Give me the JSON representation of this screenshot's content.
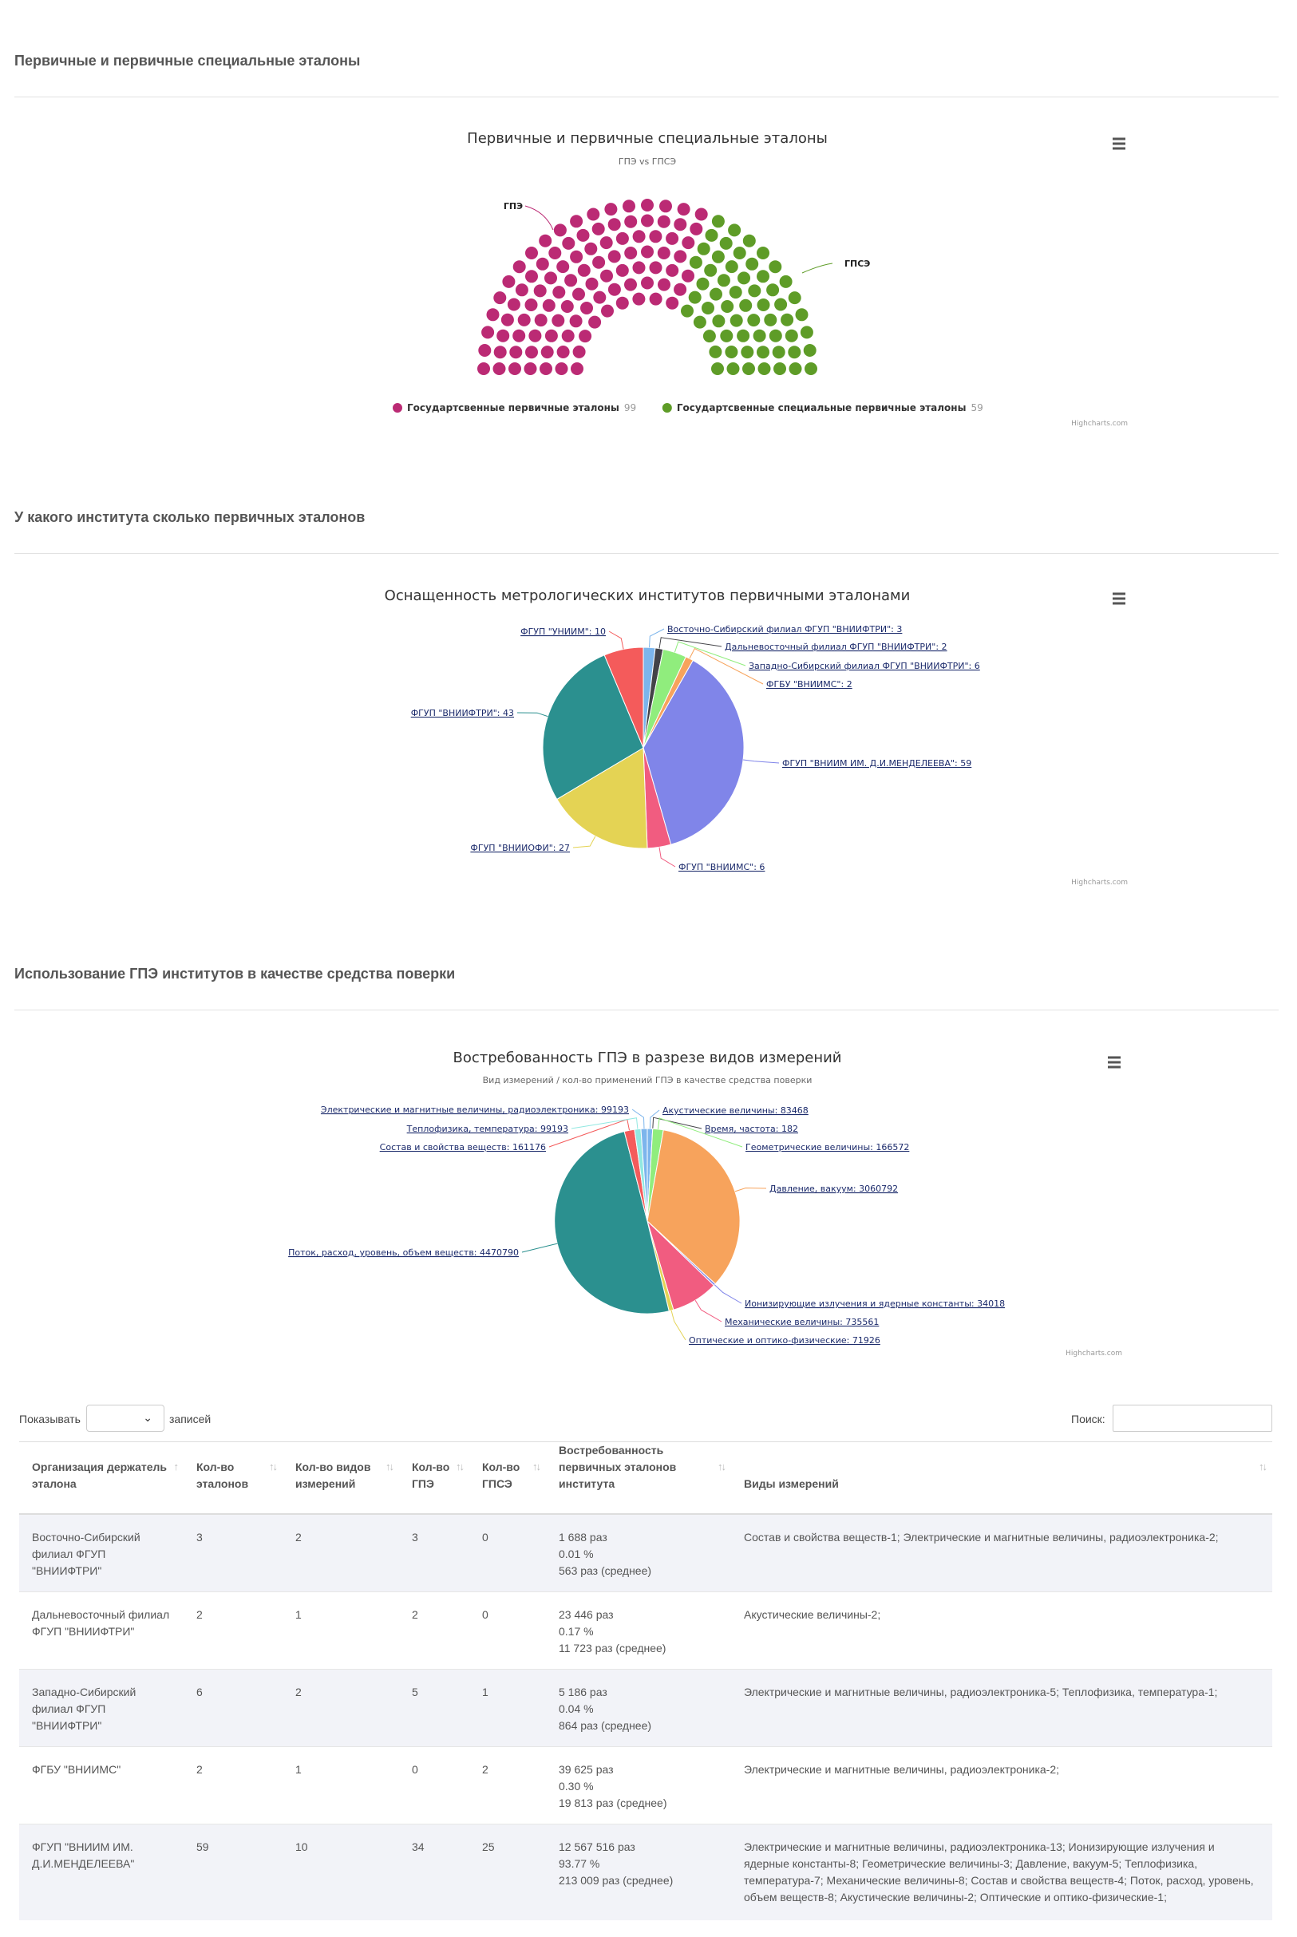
{
  "sections": {
    "s1": "Первичные и первичные специальные эталоны",
    "s2": "У какого института сколько первичных эталонов",
    "s3": "Использование ГПЭ институтов в качестве средства поверки"
  },
  "chart_data": [
    {
      "type": "item",
      "title": "Первичные и первичные специальные эталоны",
      "subtitle": "ГПЭ vs ГПСЭ",
      "series": [
        {
          "name": "Государтсвенные первичные эталоны",
          "short": "ГПЭ",
          "value": 99,
          "color": "#bb2a74"
        },
        {
          "name": "Государтсвенные специальные первичные эталоны",
          "short": "ГПСЭ",
          "value": 59,
          "color": "#5e9c27"
        }
      ],
      "legend": "bottom-center",
      "credits": "Highcharts.com"
    },
    {
      "type": "pie",
      "title": "Оснащенность метрологических институтов первичными эталонами",
      "slices": [
        {
          "label": "Восточно-Сибирский филиал ФГУП \"ВНИИФТРИ\"",
          "value": 3,
          "color": "#7cb5ec"
        },
        {
          "label": "Дальневосточный филиал ФГУП \"ВНИИФТРИ\"",
          "value": 2,
          "color": "#434348"
        },
        {
          "label": "Западно-Сибирский филиал ФГУП \"ВНИИФТРИ\"",
          "value": 6,
          "color": "#90ed7d"
        },
        {
          "label": "ФГБУ \"ВНИИМС\"",
          "value": 2,
          "color": "#f7a35c"
        },
        {
          "label": "ФГУП \"ВНИИМ ИМ. Д.И.МЕНДЕЛЕЕВА\"",
          "value": 59,
          "color": "#8085e9"
        },
        {
          "label": "ФГУП \"ВНИИМС\"",
          "value": 6,
          "color": "#f15c80"
        },
        {
          "label": "ФГУП \"ВНИИОФИ\"",
          "value": 27,
          "color": "#e4d354"
        },
        {
          "label": "ФГУП \"ВНИИФТРИ\"",
          "value": 43,
          "color": "#2b908f"
        },
        {
          "label": "ФГУП \"УНИИМ\"",
          "value": 10,
          "color": "#f45b5b"
        }
      ],
      "credits": "Highcharts.com"
    },
    {
      "type": "pie",
      "title": "Востребованность ГПЭ в разрезе видов измерений",
      "subtitle": "Вид измерений / кол-во применений ГПЭ в качестве средства поверки",
      "slices": [
        {
          "label": "Акустические величины",
          "value": 83468,
          "color": "#7cb5ec"
        },
        {
          "label": "Время, частота",
          "value": 182,
          "color": "#434348"
        },
        {
          "label": "Геометрические величины",
          "value": 166572,
          "color": "#90ed7d"
        },
        {
          "label": "Давление, вакуум",
          "value": 3060792,
          "color": "#f7a35c"
        },
        {
          "label": "Ионизирующие излучения и ядерные константы",
          "value": 34018,
          "color": "#8085e9"
        },
        {
          "label": "Механические величины",
          "value": 735561,
          "color": "#f15c80"
        },
        {
          "label": "Оптические и оптико-физические",
          "value": 71926,
          "color": "#e4d354"
        },
        {
          "label": "Поток, расход, уровень, объем веществ",
          "value": 4470790,
          "color": "#2b908f"
        },
        {
          "label": "Состав и свойства веществ",
          "value": 161176,
          "color": "#f45b5b"
        },
        {
          "label": "Теплофизика, температура",
          "value": 99193,
          "color": "#91e8e1"
        },
        {
          "label": "Электрические и магнитные величины, радиоэлектроника",
          "value": 99193,
          "color": "#7cb5ec"
        }
      ],
      "credits": "Highcharts.com"
    }
  ],
  "table": {
    "length_label": "Показывать",
    "length_suffix": "записей",
    "search_label": "Поиск:",
    "headers": [
      "Организация держатель эталона",
      "Кол-во эталонов",
      "Кол-во видов измерений",
      "Кол-во ГПЭ",
      "Кол-во ГПСЭ",
      "Востребованность первичных эталонов института",
      "Виды измерений"
    ],
    "rows": [
      {
        "org": "Восточно-Сибирский филиал ФГУП \"ВНИИФТРИ\"",
        "n": "3",
        "kinds": "2",
        "gpe": "3",
        "gpse": "0",
        "d1": "1 688 раз",
        "d2": "0.01 %",
        "d3": "563 раз (среднее)",
        "types": "Состав и свойства веществ-1; Электрические и магнитные величины, радиоэлектроника-2;"
      },
      {
        "org": "Дальневосточный филиал ФГУП \"ВНИИФТРИ\"",
        "n": "2",
        "kinds": "1",
        "gpe": "2",
        "gpse": "0",
        "d1": "23 446 раз",
        "d2": "0.17 %",
        "d3": "11 723 раз (среднее)",
        "types": "Акустические величины-2;"
      },
      {
        "org": "Западно-Сибирский филиал ФГУП \"ВНИИФТРИ\"",
        "n": "6",
        "kinds": "2",
        "gpe": "5",
        "gpse": "1",
        "d1": "5 186 раз",
        "d2": "0.04 %",
        "d3": "864 раз (среднее)",
        "types": "Электрические и магнитные величины, радиоэлектроника-5; Теплофизика, температура-1;"
      },
      {
        "org": "ФГБУ \"ВНИИМС\"",
        "n": "2",
        "kinds": "1",
        "gpe": "0",
        "gpse": "2",
        "d1": "39 625 раз",
        "d2": "0.30 %",
        "d3": "19 813 раз (среднее)",
        "types": "Электрические и магнитные величины, радиоэлектроника-2;"
      },
      {
        "org": "ФГУП \"ВНИИМ ИМ. Д.И.МЕНДЕЛЕЕВА\"",
        "n": "59",
        "kinds": "10",
        "gpe": "34",
        "gpse": "25",
        "d1": "12 567 516 раз",
        "d2": "93.77 %",
        "d3": "213 009 раз (среднее)",
        "types": "Электрические и магнитные величины, радиоэлектроника-13; Ионизирующие излучения и ядерные константы-8; Геометрические величины-3; Давление, вакуум-5; Теплофизика, температура-7; Механические величины-8; Состав и свойства веществ-4; Поток, расход, уровень, объем веществ-8; Акустические величины-2; Оптические и оптико-физические-1;"
      }
    ]
  }
}
